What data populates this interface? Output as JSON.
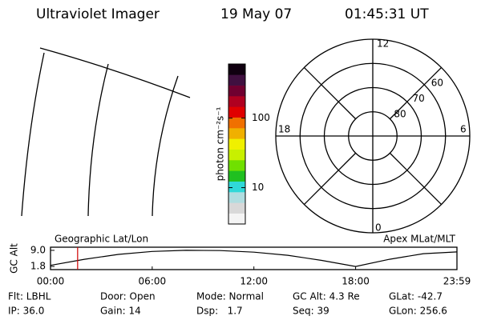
{
  "header": {
    "title": "Ultraviolet Imager",
    "date": "19 May 07",
    "time": "01:45:31 UT"
  },
  "colorbar": {
    "label": "photon cm⁻²s⁻¹",
    "lim": [
      3,
      600
    ],
    "ticks": [
      10,
      100
    ],
    "log": true,
    "colors": [
      "#f4f4f4",
      "#d8d8d8",
      "#b0dde0",
      "#30d8d8",
      "#20c020",
      "#70e000",
      "#c8f000",
      "#f0f000",
      "#f0b000",
      "#f07000",
      "#e00000",
      "#b00020",
      "#700030",
      "#401040",
      "#100010"
    ]
  },
  "polar": {
    "lat_min": 50,
    "lat_rings": [
      60,
      70,
      80
    ],
    "hour_labels": {
      "top": "12",
      "left": "18",
      "right": "6",
      "bottom": "0"
    }
  },
  "chart_data": {
    "type": "line",
    "ylabel": "GC Alt",
    "annotations": [
      "Geographic Lat/Lon",
      "Apex MLat/MLT"
    ],
    "x": [
      0,
      2,
      4,
      6,
      8,
      10,
      12,
      14,
      16,
      18,
      20,
      22,
      23.98
    ],
    "values": [
      2.3,
      5.0,
      7.2,
      8.5,
      9.0,
      8.9,
      8.2,
      6.8,
      4.5,
      1.8,
      5.0,
      7.5,
      8.3
    ],
    "color": "#000000",
    "marker_x": 1.6,
    "marker_color": "#d00000",
    "xlim": [
      0,
      23.98
    ],
    "xticks": [
      {
        "value": 0,
        "label": "00:00"
      },
      {
        "value": 6,
        "label": "06:00"
      },
      {
        "value": 12,
        "label": "12:00"
      },
      {
        "value": 18,
        "label": "18:00"
      },
      {
        "value": 23.98,
        "label": "23:59"
      }
    ],
    "ylim": [
      0.4,
      10.4
    ],
    "yticks": [
      1.8,
      {
        "value": 9,
        "label": "9.0"
      }
    ]
  },
  "footer": [
    [
      "Flt: LBHL",
      "Door: Open",
      "Mode: Normal",
      "GC Alt: 4.3 Re",
      "GLat: -42.7"
    ],
    [
      "IP: 36.0",
      "Gain: 14",
      "Dsp:   1.7",
      "Seq: 39",
      "GLon: 256.6"
    ]
  ]
}
